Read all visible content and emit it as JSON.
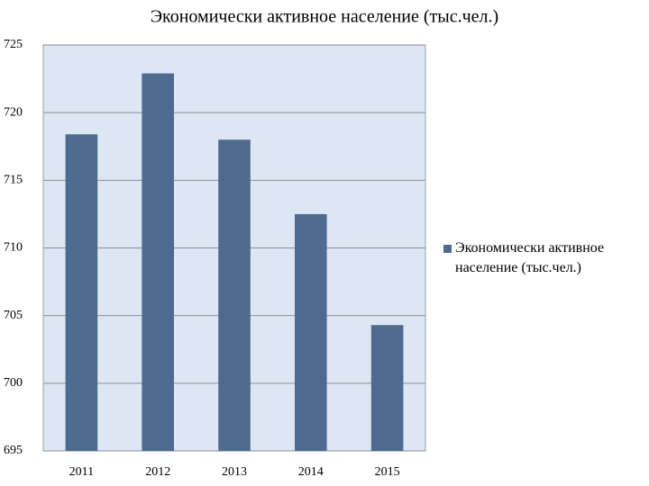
{
  "chart_data": {
    "type": "bar",
    "title": "Экономически активное население (тыс.чел.)",
    "categories": [
      "2011",
      "2012",
      "2013",
      "2014",
      "2015"
    ],
    "series": [
      {
        "name": "Экономически активное население (тыс.чел.)",
        "color": "#4f6a8f",
        "values": [
          718.4,
          722.9,
          718.0,
          712.5,
          704.3
        ]
      }
    ],
    "ylim": [
      695,
      725
    ],
    "yticks": [
      695,
      700,
      705,
      710,
      715,
      720,
      725
    ],
    "grid": true,
    "legend": "right"
  }
}
